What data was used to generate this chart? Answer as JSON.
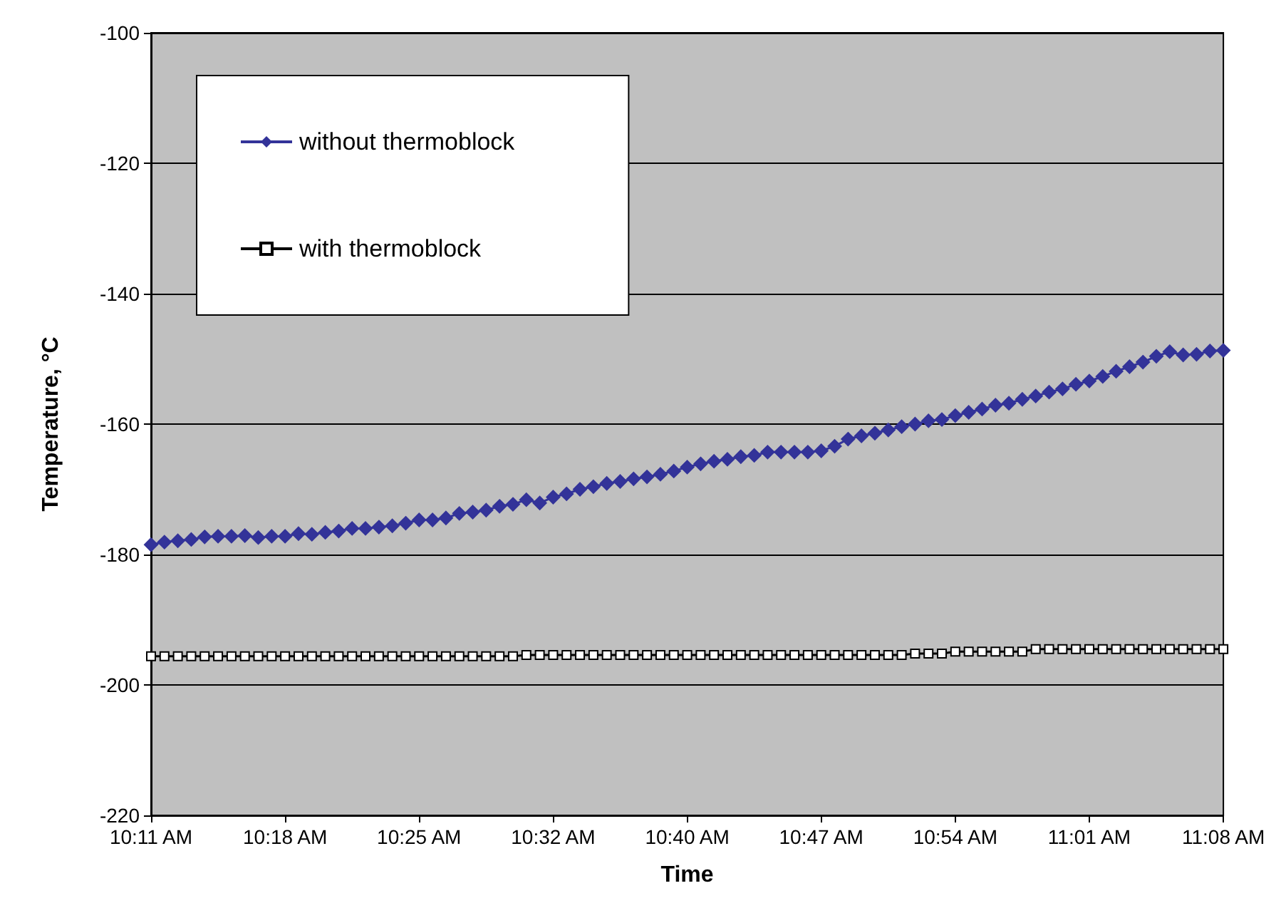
{
  "chart_data": {
    "type": "line",
    "xlabel": "Time",
    "ylabel": "Temperature, °C",
    "categories": [
      "10:11 AM",
      null,
      null,
      null,
      null,
      null,
      null,
      null,
      null,
      null,
      "10:18 AM",
      null,
      null,
      null,
      null,
      null,
      null,
      null,
      null,
      null,
      "10:25 AM",
      null,
      null,
      null,
      null,
      null,
      null,
      null,
      null,
      null,
      "10:32 AM",
      null,
      null,
      null,
      null,
      null,
      null,
      null,
      null,
      null,
      "10:40 AM",
      null,
      null,
      null,
      null,
      null,
      null,
      null,
      null,
      null,
      "10:47 AM",
      null,
      null,
      null,
      null,
      null,
      null,
      null,
      null,
      null,
      "10:54 AM",
      null,
      null,
      null,
      null,
      null,
      null,
      null,
      null,
      null,
      "11:01 AM",
      null,
      null,
      null,
      null,
      null,
      null,
      null,
      null,
      null,
      "11:08 AM"
    ],
    "series": [
      {
        "name": "without thermoblock",
        "color": "#333399",
        "marker": "diamond",
        "values": [
          -178.5,
          -178.1,
          -177.9,
          -177.7,
          -177.3,
          -177.2,
          -177.2,
          -177.1,
          -177.4,
          -177.2,
          -177.2,
          -176.8,
          -176.9,
          -176.6,
          -176.4,
          -176,
          -176,
          -175.8,
          -175.6,
          -175.2,
          -174.7,
          -174.7,
          -174.4,
          -173.7,
          -173.5,
          -173.2,
          -172.6,
          -172.3,
          -171.6,
          -172.1,
          -171.2,
          -170.7,
          -170,
          -169.6,
          -169.1,
          -168.8,
          -168.4,
          -168.1,
          -167.7,
          -167.2,
          -166.6,
          -166.1,
          -165.7,
          -165.4,
          -165,
          -164.8,
          -164.3,
          -164.3,
          -164.3,
          -164.3,
          -164.1,
          -163.4,
          -162.3,
          -161.8,
          -161.4,
          -160.9,
          -160.4,
          -160,
          -159.5,
          -159.3,
          -158.7,
          -158.2,
          -157.7,
          -157.1,
          -156.8,
          -156.2,
          -155.7,
          -155.1,
          -154.6,
          -153.9,
          -153.4,
          -152.7,
          -151.9,
          -151.2,
          -150.5,
          -149.6,
          -148.9,
          -149.4,
          -149.3,
          -148.8,
          -148.7
        ]
      },
      {
        "name": "with thermoblock",
        "color": "#000000",
        "marker": "square",
        "values": [
          -195.6,
          -195.6,
          -195.6,
          -195.6,
          -195.6,
          -195.6,
          -195.6,
          -195.6,
          -195.6,
          -195.6,
          -195.6,
          -195.6,
          -195.6,
          -195.6,
          -195.6,
          -195.6,
          -195.6,
          -195.6,
          -195.6,
          -195.6,
          -195.6,
          -195.6,
          -195.6,
          -195.6,
          -195.6,
          -195.6,
          -195.6,
          -195.6,
          -195.4,
          -195.4,
          -195.4,
          -195.4,
          -195.4,
          -195.4,
          -195.4,
          -195.4,
          -195.4,
          -195.4,
          -195.4,
          -195.4,
          -195.4,
          -195.4,
          -195.4,
          -195.4,
          -195.4,
          -195.4,
          -195.4,
          -195.4,
          -195.4,
          -195.4,
          -195.4,
          -195.4,
          -195.4,
          -195.4,
          -195.4,
          -195.4,
          -195.4,
          -195.2,
          -195.2,
          -195.2,
          -194.9,
          -194.9,
          -194.9,
          -194.9,
          -194.9,
          -194.9,
          -194.5,
          -194.5,
          -194.5,
          -194.5,
          -194.5,
          -194.5,
          -194.5,
          -194.5,
          -194.5,
          -194.5,
          -194.5,
          -194.5,
          -194.5,
          -194.5,
          -194.5
        ]
      }
    ],
    "ylim": [
      -220,
      -100
    ],
    "yticks": [
      -220,
      -200,
      -180,
      -160,
      -140,
      -120,
      -100
    ],
    "grid": "y",
    "legend": "top left",
    "line_style": "solid"
  }
}
